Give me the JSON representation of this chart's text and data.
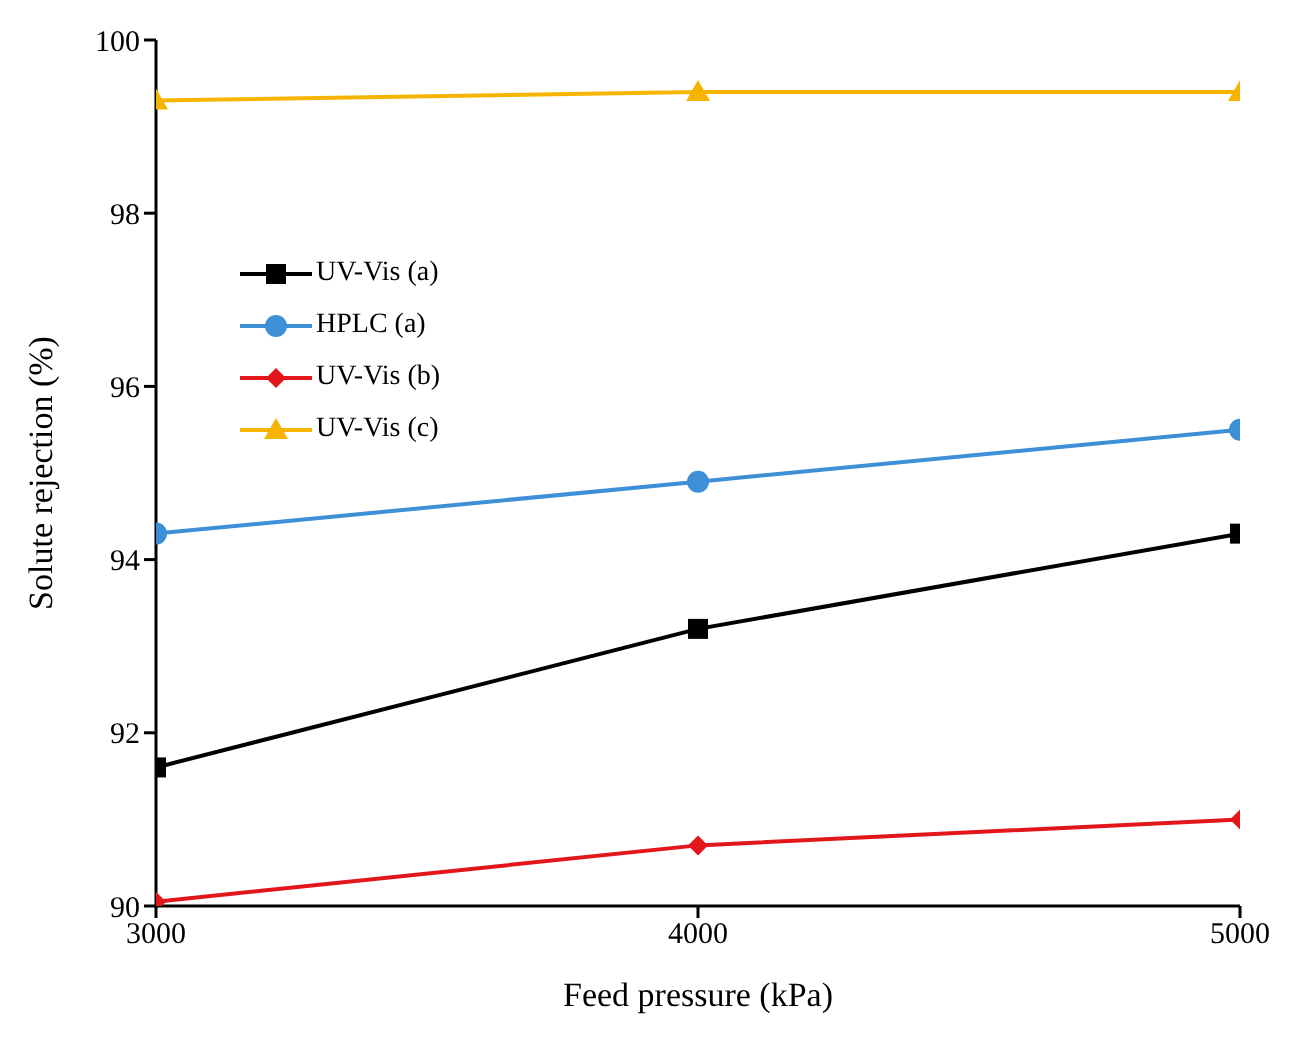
{
  "chart_data": {
    "type": "line",
    "xlabel": "Feed pressure (kPa)",
    "ylabel": "Solute rejection (%)",
    "x": [
      3000,
      4000,
      5000
    ],
    "xlim": [
      3000,
      5000
    ],
    "xticks": [
      3000,
      4000,
      5000
    ],
    "ylim": [
      90,
      100
    ],
    "yticks": [
      90,
      92,
      94,
      96,
      98,
      100
    ],
    "grid": false,
    "legend": "top left",
    "series": [
      {
        "name": "UV-Vis (a)",
        "color": "#000000",
        "marker": "square",
        "values": [
          91.6,
          93.2,
          94.3
        ]
      },
      {
        "name": "HPLC (a)",
        "color": "#3d8fd6",
        "marker": "circle",
        "values": [
          94.3,
          94.9,
          95.5
        ]
      },
      {
        "name": "UV-Vis (b)",
        "color": "#e3161b",
        "marker": "diamond",
        "values": [
          90.05,
          90.7,
          91.0
        ]
      },
      {
        "name": "UV-Vis (c)",
        "color": "#f5b400",
        "marker": "triangle",
        "values": [
          99.3,
          99.4,
          99.4
        ]
      }
    ]
  }
}
